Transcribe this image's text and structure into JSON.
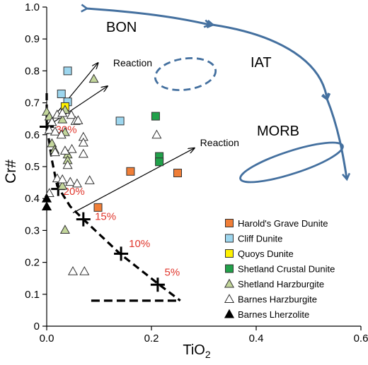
{
  "chart_data": {
    "type": "scatter",
    "xlabel": "TiO2",
    "ylabel": "Cr#",
    "xlim": [
      0,
      0.6
    ],
    "ylim": [
      0,
      1.0
    ],
    "x_ticks": [
      "0.0",
      "0.2",
      "0.4",
      "0.6"
    ],
    "y_ticks": [
      "0",
      "0.1",
      "0.2",
      "0.3",
      "0.4",
      "0.5",
      "0.6",
      "0.7",
      "0.8",
      "0.9",
      "1.0"
    ],
    "grid": false,
    "legend_position": "bottom-right",
    "series": [
      {
        "name": "Harold's Grave Dunite",
        "marker": "square",
        "color": "#F07E37",
        "points": [
          [
            0.16,
            0.485
          ],
          [
            0.25,
            0.48
          ],
          [
            0.098,
            0.372
          ]
        ]
      },
      {
        "name": "Cliff Dunite",
        "marker": "square",
        "color": "#9DD6EE",
        "points": [
          [
            0.04,
            0.8
          ],
          [
            0.028,
            0.728
          ],
          [
            0.04,
            0.703
          ],
          [
            0.14,
            0.643
          ]
        ]
      },
      {
        "name": "Quoys Dunite",
        "marker": "square",
        "color": "#FFF200",
        "points": [
          [
            0.035,
            0.688
          ]
        ]
      },
      {
        "name": "Shetland Crustal Dunite",
        "marker": "square",
        "color": "#21A14A",
        "points": [
          [
            0.208,
            0.658
          ],
          [
            0.215,
            0.532
          ],
          [
            0.215,
            0.515
          ]
        ]
      },
      {
        "name": "Shetland Harzburgite",
        "marker": "triangle",
        "color": "#C3D69B",
        "points": [
          [
            0.09,
            0.775
          ],
          [
            0.0,
            0.672
          ],
          [
            0.035,
            0.678
          ],
          [
            0.005,
            0.657
          ],
          [
            0.03,
            0.648
          ],
          [
            0.035,
            0.608
          ],
          [
            0.01,
            0.573
          ],
          [
            0.015,
            0.553
          ],
          [
            0.04,
            0.538
          ],
          [
            0.04,
            0.52
          ],
          [
            0.035,
            0.302
          ],
          [
            0.03,
            0.44
          ]
        ]
      },
      {
        "name": "Barnes Harzburgite",
        "marker": "triangle",
        "color": "#FFFFFF",
        "points": [
          [
            0.01,
            0.64
          ],
          [
            0.02,
            0.663
          ],
          [
            0.03,
            0.668
          ],
          [
            0.047,
            0.662
          ],
          [
            0.055,
            0.643
          ],
          [
            0.06,
            0.645
          ],
          [
            0.005,
            0.615
          ],
          [
            0.016,
            0.61
          ],
          [
            0.028,
            0.6
          ],
          [
            0.07,
            0.593
          ],
          [
            0.07,
            0.575
          ],
          [
            0.048,
            0.555
          ],
          [
            0.016,
            0.545
          ],
          [
            0.035,
            0.55
          ],
          [
            0.07,
            0.54
          ],
          [
            0.04,
            0.505
          ],
          [
            0.02,
            0.463
          ],
          [
            0.03,
            0.46
          ],
          [
            0.045,
            0.452
          ],
          [
            0.058,
            0.447
          ],
          [
            0.082,
            0.457
          ],
          [
            0.005,
            0.417
          ],
          [
            0.21,
            0.6
          ],
          [
            0.05,
            0.172
          ],
          [
            0.072,
            0.172
          ]
        ]
      },
      {
        "name": "Barnes Lherzolite",
        "marker": "triangle-filled",
        "color": "#000000",
        "points": [
          [
            0.0,
            0.4
          ],
          [
            0.0,
            0.375
          ]
        ]
      }
    ],
    "melting_trend": {
      "line_points": [
        [
          0.0,
          0.73
        ],
        [
          0.0,
          0.63
        ],
        [
          0.01,
          0.52
        ],
        [
          0.02,
          0.44
        ],
        [
          0.045,
          0.375
        ],
        [
          0.07,
          0.335
        ],
        [
          0.14,
          0.227
        ],
        [
          0.215,
          0.13
        ],
        [
          0.255,
          0.08
        ]
      ],
      "base_line": [
        [
          0.085,
          0.08
        ],
        [
          0.255,
          0.08
        ]
      ],
      "crosses": [
        [
          0.0,
          0.625
        ],
        [
          0.022,
          0.43
        ],
        [
          0.07,
          0.335
        ],
        [
          0.142,
          0.227
        ],
        [
          0.212,
          0.13
        ]
      ],
      "labels": [
        {
          "text": "30%",
          "x": 0.017,
          "y": 0.605
        },
        {
          "text": "20%",
          "x": 0.032,
          "y": 0.412
        },
        {
          "text": "15%",
          "x": 0.092,
          "y": 0.333
        },
        {
          "text": "10%",
          "x": 0.157,
          "y": 0.248
        },
        {
          "text": "5%",
          "x": 0.225,
          "y": 0.158
        }
      ],
      "label_color": "#E0362C"
    },
    "reaction_arrows": [
      {
        "from": [
          0.0,
          0.63
        ],
        "to": [
          0.098,
          0.825
        ],
        "label": ""
      },
      {
        "from": [
          0.0,
          0.625
        ],
        "to": [
          0.116,
          0.752
        ],
        "label": "Reaction"
      },
      {
        "from": [
          0.05,
          0.355
        ],
        "to": [
          0.282,
          0.558
        ],
        "label": "Reaction"
      }
    ],
    "fields": [
      {
        "name": "BON",
        "shape": "arc-endpoint",
        "color": "#3D6A9D"
      },
      {
        "name": "IAT",
        "shape": "dashed-ellipse",
        "color": "#3D6A9D"
      },
      {
        "name": "MORB",
        "shape": "ellipse",
        "color": "#3D6A9D"
      }
    ],
    "field_curve_color": "#44709F"
  }
}
